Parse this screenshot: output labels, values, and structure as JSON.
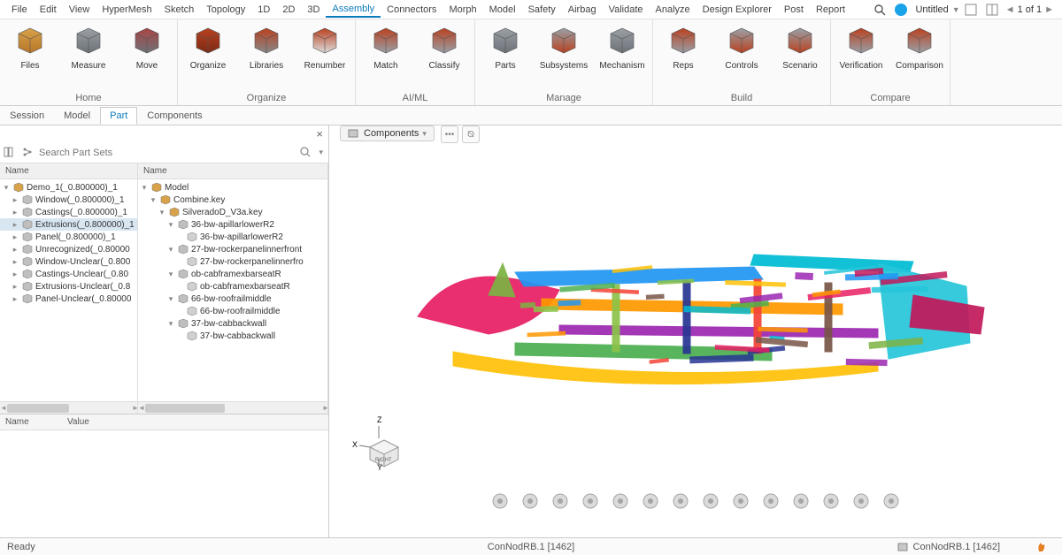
{
  "menu": {
    "items": [
      "File",
      "Edit",
      "View",
      "HyperMesh",
      "Sketch",
      "Topology",
      "1D",
      "2D",
      "3D",
      "Assembly",
      "Connectors",
      "Morph",
      "Model",
      "Safety",
      "Airbag",
      "Validate",
      "Analyze",
      "Design Explorer",
      "Post",
      "Report"
    ],
    "active": "Assembly"
  },
  "topright": {
    "title": "Untitled",
    "pager": "1 of 1"
  },
  "ribbon": [
    {
      "label": "Home",
      "tools": [
        {
          "name": "files",
          "label": "Files",
          "colors": [
            "#d8a24a",
            "#b87628"
          ]
        },
        {
          "name": "measure",
          "label": "Measure",
          "colors": [
            "#9aa0a6",
            "#6d7278"
          ]
        },
        {
          "name": "move",
          "label": "Move",
          "colors": [
            "#a44",
            "#6d7278"
          ]
        }
      ]
    },
    {
      "label": "Organize",
      "tools": [
        {
          "name": "organize",
          "label": "Organize",
          "colors": [
            "#b9411f",
            "#7c2a14"
          ]
        },
        {
          "name": "libraries",
          "label": "Libraries",
          "colors": [
            "#b9411f",
            "#888"
          ]
        },
        {
          "name": "renumber",
          "label": "Renumber",
          "colors": [
            "#b9411f",
            "#ddd"
          ]
        }
      ]
    },
    {
      "label": "AI/ML",
      "tools": [
        {
          "name": "match",
          "label": "Match",
          "colors": [
            "#b9411f",
            "#9aa0a6"
          ]
        },
        {
          "name": "classify",
          "label": "Classify",
          "colors": [
            "#b9411f",
            "#9aa0a6"
          ]
        }
      ]
    },
    {
      "label": "Manage",
      "tools": [
        {
          "name": "parts",
          "label": "Parts",
          "colors": [
            "#9aa0a6",
            "#6d7278"
          ]
        },
        {
          "name": "subsystems",
          "label": "Subsystems",
          "colors": [
            "#9aa0a6",
            "#b9411f"
          ]
        },
        {
          "name": "mechanism",
          "label": "Mechanism",
          "colors": [
            "#9aa0a6",
            "#6d7278"
          ]
        }
      ]
    },
    {
      "label": "Build",
      "tools": [
        {
          "name": "reps",
          "label": "Reps",
          "colors": [
            "#b9411f",
            "#9aa0a6"
          ]
        },
        {
          "name": "controls",
          "label": "Controls",
          "colors": [
            "#9aa0a6",
            "#b9411f"
          ]
        },
        {
          "name": "scenario",
          "label": "Scenario",
          "colors": [
            "#9aa0a6",
            "#b9411f"
          ]
        }
      ]
    },
    {
      "label": "Compare",
      "tools": [
        {
          "name": "verification",
          "label": "Verification",
          "colors": [
            "#b9411f",
            "#9aa0a6"
          ]
        },
        {
          "name": "comparison",
          "label": "Comparison",
          "colors": [
            "#b9411f",
            "#9aa0a6"
          ]
        }
      ]
    }
  ],
  "subtabs": {
    "items": [
      "Session",
      "Model",
      "Part",
      "Components"
    ],
    "active": "Part"
  },
  "search": {
    "placeholder": "Search Part Sets"
  },
  "leftTree": {
    "header": "Name",
    "root": "Demo_1(_0.800000)_1",
    "items": [
      "Window(_0.800000)_1",
      "Castings(_0.800000)_1",
      "Extrusions(_0.800000)_1",
      "Panel(_0.800000)_1",
      "Unrecognized(_0.80000",
      "Window-Unclear(_0.800",
      "Castings-Unclear(_0.80",
      "Extrusions-Unclear(_0.8",
      "Panel-Unclear(_0.80000"
    ],
    "selected": "Extrusions(_0.800000)_1"
  },
  "rightTree": {
    "header": "Name",
    "root": "Model",
    "nodes": [
      {
        "l": 1,
        "t": "Combine.key"
      },
      {
        "l": 2,
        "t": "SilveradoD_V3a.key"
      },
      {
        "l": 3,
        "t": "36-bw-apillarlowerR2"
      },
      {
        "l": 4,
        "t": "36-bw-apillarlowerR2"
      },
      {
        "l": 3,
        "t": "27-bw-rockerpanelinnerfront"
      },
      {
        "l": 4,
        "t": "27-bw-rockerpanelinnerfro"
      },
      {
        "l": 3,
        "t": "ob-cabframexbarseatR"
      },
      {
        "l": 4,
        "t": "ob-cabframexbarseatR"
      },
      {
        "l": 3,
        "t": "66-bw-roofrailmiddle"
      },
      {
        "l": 4,
        "t": "66-bw-roofrailmiddle"
      },
      {
        "l": 3,
        "t": "37-bw-cabbackwall"
      },
      {
        "l": 4,
        "t": "37-bw-cabbackwall"
      }
    ]
  },
  "props": {
    "col1": "Name",
    "col2": "Value"
  },
  "chip": {
    "label": "Components"
  },
  "triad": {
    "x": "X",
    "y": "Y",
    "z": "Z",
    "face": "RIGHT"
  },
  "status": {
    "left": "Ready",
    "center": "ConNodRB.1 [1462]",
    "right_item": "ConNodRB.1 [1462]"
  },
  "model_colors": [
    "#e81e63",
    "#2196f3",
    "#4caf50",
    "#ff9800",
    "#9c27b0",
    "#00bcd4",
    "#ffc107",
    "#8bc34a",
    "#283593",
    "#f44336",
    "#795548",
    "#26c6da",
    "#c2185b",
    "#7cb342"
  ]
}
